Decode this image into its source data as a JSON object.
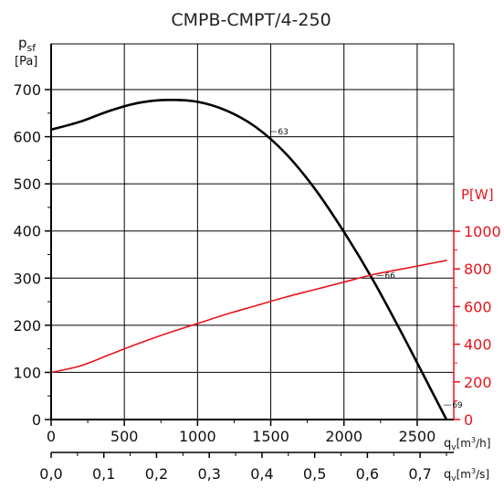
{
  "chart_data": {
    "type": "line",
    "title": "CMPB-CMPT/4-250",
    "left_axis": {
      "label_main": "p",
      "label_sub": "sf",
      "unit": "[Pa]",
      "range": [
        0,
        700
      ],
      "ticks": [
        0,
        100,
        200,
        300,
        400,
        500,
        600,
        700
      ],
      "tick_labels": [
        "0",
        "100",
        "200",
        "300",
        "400",
        "500",
        "600",
        "700"
      ]
    },
    "right_axis": {
      "label": "P[W]",
      "range": [
        0,
        1000
      ],
      "ticks": [
        0,
        200,
        400,
        600,
        800,
        1000
      ],
      "tick_labels": [
        "0",
        "200",
        "400",
        "600",
        "800",
        "1000"
      ],
      "color": "#e8141b"
    },
    "x_axis_primary": {
      "label_main": "q",
      "label_sub": "v",
      "unit_pre": "[m",
      "unit_sup": "3",
      "unit_post": "/h]",
      "range": [
        0,
        2750
      ],
      "ticks": [
        0,
        500,
        1000,
        1500,
        2000,
        2500
      ],
      "tick_labels": [
        "0",
        "500",
        "1000",
        "1500",
        "2000",
        "2500"
      ]
    },
    "x_axis_secondary": {
      "label_main": "q",
      "label_sub": "v",
      "unit_pre": "[m",
      "unit_sup": "3",
      "unit_post": "/s]",
      "ticks": [
        0,
        0.1,
        0.2,
        0.3,
        0.4,
        0.5,
        0.6,
        0.7
      ],
      "tick_labels": [
        "0,0",
        "0,1",
        "0,2",
        "0,3",
        "0,4",
        "0,5",
        "0,6",
        "0,7"
      ]
    },
    "grid": true,
    "series": [
      {
        "axis": "left",
        "color": "#000000",
        "points": [
          [
            0,
            615
          ],
          [
            200,
            632
          ],
          [
            400,
            655
          ],
          [
            600,
            672
          ],
          [
            800,
            678
          ],
          [
            1000,
            674
          ],
          [
            1200,
            655
          ],
          [
            1400,
            620
          ],
          [
            1600,
            565
          ],
          [
            1800,
            490
          ],
          [
            2000,
            398
          ],
          [
            2200,
            295
          ],
          [
            2400,
            180
          ],
          [
            2600,
            60
          ],
          [
            2700,
            0
          ]
        ]
      },
      {
        "axis": "right",
        "color": "#e8141b",
        "points": [
          [
            0,
            250
          ],
          [
            200,
            285
          ],
          [
            400,
            345
          ],
          [
            600,
            405
          ],
          [
            800,
            460
          ],
          [
            1000,
            510
          ],
          [
            1200,
            560
          ],
          [
            1400,
            605
          ],
          [
            1600,
            650
          ],
          [
            1800,
            690
          ],
          [
            2000,
            730
          ],
          [
            2200,
            770
          ],
          [
            2400,
            800
          ],
          [
            2600,
            830
          ],
          [
            2700,
            845
          ]
        ]
      }
    ],
    "annotations": [
      {
        "text": "63",
        "x": 1530,
        "y": 605
      },
      {
        "text": "66",
        "x": 2260,
        "y": 300
      },
      {
        "text": "69",
        "x": 2720,
        "y": 25
      }
    ]
  }
}
